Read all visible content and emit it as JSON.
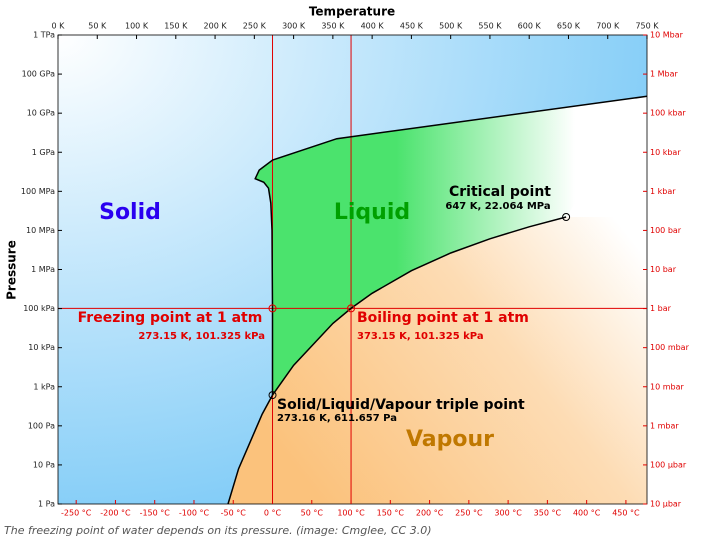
{
  "caption": "The freezing point of water depends on its pressure. (image: Cmglee, CC 3.0)",
  "chart_data": {
    "type": "phase",
    "xlabel": "Temperature",
    "ylabel": "Pressure",
    "log_y": true,
    "xlim": [
      0,
      750
    ],
    "xticks": [
      {
        "value": 0,
        "label": "0 K"
      },
      {
        "value": 50,
        "label": "50 K"
      },
      {
        "value": 100,
        "label": "100 K"
      },
      {
        "value": 150,
        "label": "150 K"
      },
      {
        "value": 200,
        "label": "200 K"
      },
      {
        "value": 250,
        "label": "250 K"
      },
      {
        "value": 300,
        "label": "300 K"
      },
      {
        "value": 350,
        "label": "350 K"
      },
      {
        "value": 400,
        "label": "400 K"
      },
      {
        "value": 450,
        "label": "450 K"
      },
      {
        "value": 500,
        "label": "500 K"
      },
      {
        "value": 550,
        "label": "550 K"
      },
      {
        "value": 600,
        "label": "600 K"
      },
      {
        "value": 650,
        "label": "650 K"
      },
      {
        "value": 700,
        "label": "700 K"
      },
      {
        "value": 750,
        "label": "750 K"
      }
    ],
    "x2lim": [
      -273.15,
      476.85
    ],
    "x2ticks": [
      {
        "value": -250,
        "label": "-250 °C"
      },
      {
        "value": -200,
        "label": "-200 °C"
      },
      {
        "value": -150,
        "label": "-150 °C"
      },
      {
        "value": -100,
        "label": "-100 °C"
      },
      {
        "value": -50,
        "label": "-50 °C"
      },
      {
        "value": 0,
        "label": "0 °C"
      },
      {
        "value": 50,
        "label": "50 °C"
      },
      {
        "value": 100,
        "label": "100 °C"
      },
      {
        "value": 150,
        "label": "150 °C"
      },
      {
        "value": 200,
        "label": "200 °C"
      },
      {
        "value": 250,
        "label": "250 °C"
      },
      {
        "value": 300,
        "label": "300 °C"
      },
      {
        "value": 350,
        "label": "350 °C"
      },
      {
        "value": 400,
        "label": "400 °C"
      },
      {
        "value": 450,
        "label": "450 °C"
      }
    ],
    "ylim": [
      1,
      1000000000000.0
    ],
    "yticks": [
      {
        "value": 1000000000000.0,
        "label": "1 TPa"
      },
      {
        "value": 100000000000.0,
        "label": "100 GPa"
      },
      {
        "value": 10000000000.0,
        "label": "10 GPa"
      },
      {
        "value": 1000000000.0,
        "label": "1 GPa"
      },
      {
        "value": 100000000.0,
        "label": "100 MPa"
      },
      {
        "value": 10000000.0,
        "label": "10 MPa"
      },
      {
        "value": 1000000.0,
        "label": "1 MPa"
      },
      {
        "value": 100000.0,
        "label": "100 kPa"
      },
      {
        "value": 10000.0,
        "label": "10 kPa"
      },
      {
        "value": 1000,
        "label": "1 kPa"
      },
      {
        "value": 100,
        "label": "100 Pa"
      },
      {
        "value": 10,
        "label": "10 Pa"
      },
      {
        "value": 1,
        "label": "1 Pa"
      }
    ],
    "y2lim": [
      1e-05,
      10000000.0
    ],
    "y2ticks": [
      {
        "value": 10000000.0,
        "label": "10 Mbar"
      },
      {
        "value": 1000000.0,
        "label": "1 Mbar"
      },
      {
        "value": 100000.0,
        "label": "100 kbar"
      },
      {
        "value": 10000.0,
        "label": "10 kbar"
      },
      {
        "value": 1000,
        "label": "1 kbar"
      },
      {
        "value": 100,
        "label": "100 bar"
      },
      {
        "value": 10,
        "label": "10 bar"
      },
      {
        "value": 1,
        "label": "1 bar"
      },
      {
        "value": 0.1,
        "label": "100 mbar"
      },
      {
        "value": 0.01,
        "label": "10 mbar"
      },
      {
        "value": 0.001,
        "label": "1 mbar"
      },
      {
        "value": 0.0001,
        "label": "100 µbar"
      },
      {
        "value": 1e-05,
        "label": "10 µbar"
      }
    ],
    "series": [
      {
        "color": "#000000",
        "x": [
          273.16,
          273.15,
          272.5,
          271,
          268,
          262,
          251.165,
          256.165,
          273.31,
          355,
          750
        ],
        "values": [
          611.657,
          101325,
          10000000.0,
          50000000.0,
          120000000.0,
          170000000.0,
          209900000.0,
          350000000.0,
          632400000.0,
          2216000000.0,
          27000000000.0
        ]
      },
      {
        "color": "#000000",
        "x": [
          216.5,
          230,
          245,
          260,
          273.16
        ],
        "values": [
          1,
          8,
          40,
          200,
          611.657
        ]
      },
      {
        "color": "#000000",
        "x": [
          273.16,
          300,
          350,
          373.15,
          400,
          450,
          500,
          550,
          600,
          647
        ],
        "values": [
          611.657,
          3537,
          41680,
          101325,
          245770,
          932000,
          2639000,
          6117000,
          12345000,
          22064000
        ]
      }
    ],
    "reference_lines": {
      "color": "#e00000",
      "x": [
        273.15,
        373.15
      ],
      "y": [
        101325
      ]
    },
    "regions": [
      {
        "label": "Solid",
        "color": "#2a00f0"
      },
      {
        "label": "Liquid",
        "color": "#00a000"
      },
      {
        "label": "Vapour",
        "color": "#c07800"
      }
    ],
    "points": [
      {
        "label": "Freezing point at 1 atm",
        "detail": "273.15 K, 101.325 kPa",
        "x": 273.15,
        "y": 101325,
        "color": "#e00000"
      },
      {
        "label": "Boiling point at 1 atm",
        "detail": "373.15 K, 101.325 kPa",
        "x": 373.15,
        "y": 101325,
        "color": "#e00000"
      },
      {
        "label": "Solid/Liquid/Vapour triple point",
        "detail": "273.16 K, 611.657 Pa",
        "x": 273.16,
        "y": 611.657,
        "color": "#000000"
      },
      {
        "label": "Critical point",
        "detail": "647 K, 22.064 MPa",
        "x": 647,
        "y": 22064000,
        "color": "#000000"
      }
    ]
  }
}
